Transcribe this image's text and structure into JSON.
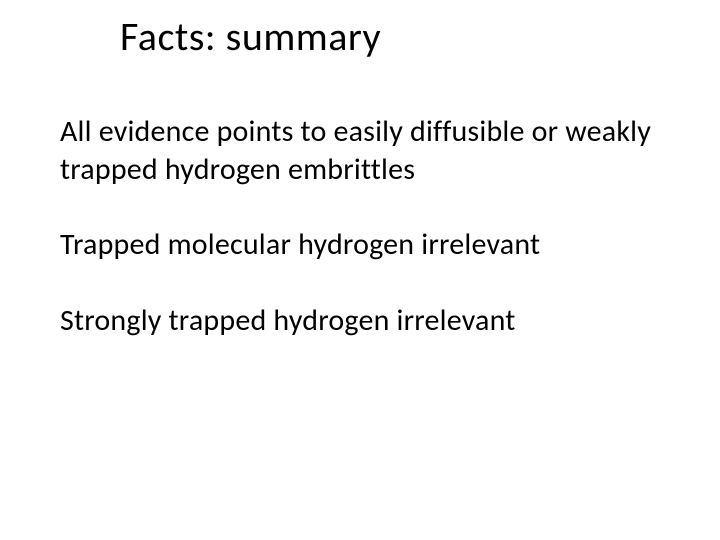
{
  "slide": {
    "title": "Facts: summary",
    "paragraphs": [
      "All evidence points to easily diffusible or weakly trapped hydrogen embrittles",
      "Trapped molecular hydrogen irrelevant",
      "Strongly trapped hydrogen irrelevant"
    ]
  },
  "styling": {
    "background_color": "#ffffff",
    "text_color": "#000000",
    "title_fontsize": 40,
    "body_fontsize": 30,
    "font_family": "Calibri",
    "slide_width": 720,
    "slide_height": 540
  }
}
